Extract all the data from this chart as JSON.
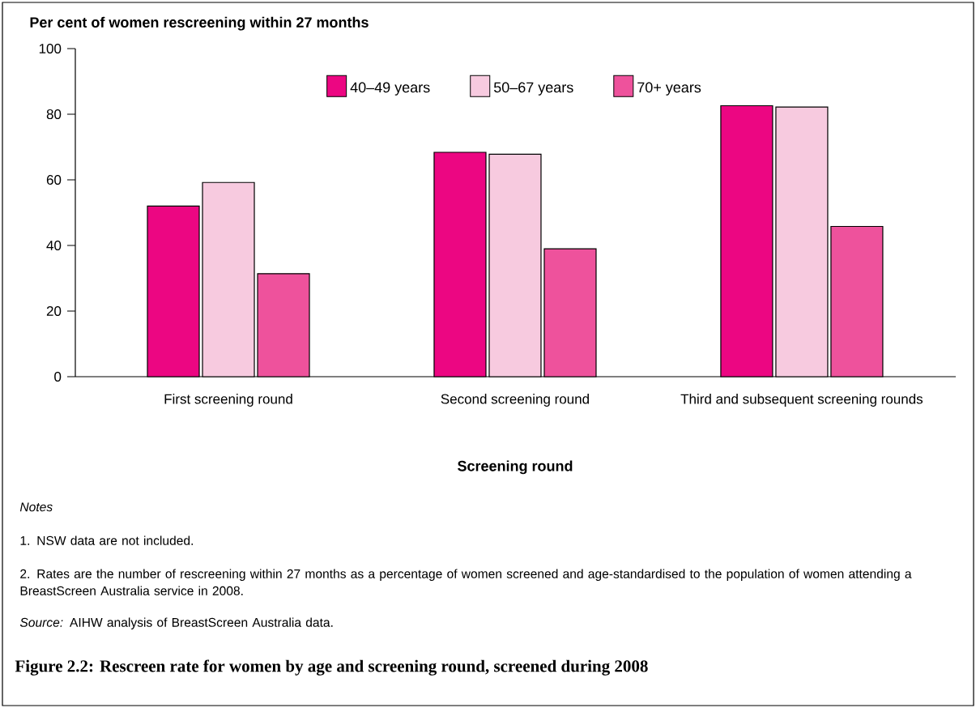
{
  "chart_data": {
    "type": "bar",
    "title": "Figure 2.2: Rescreen rate for women by age and screening round, screened during 2008",
    "ylabel": "Per cent of women rescreening within 27 months",
    "xlabel": "Screening round",
    "categories": [
      "First screening round",
      "Second screening round",
      "Third and subsequent screening rounds"
    ],
    "series": [
      {
        "name": "40–49 years",
        "color": "#ec0682",
        "values": [
          52.0,
          68.4,
          82.6
        ]
      },
      {
        "name": "50–67 years",
        "color": "#f7cadf",
        "values": [
          59.2,
          67.8,
          82.2
        ]
      },
      {
        "name": "70+ years",
        "color": "#ee529c",
        "values": [
          31.4,
          39.0,
          45.8
        ]
      }
    ],
    "ylim": [
      0,
      100
    ],
    "yticks": [
      0,
      20,
      40,
      60,
      80,
      100
    ],
    "legend": "top",
    "grid": false,
    "annotations": [
      "Notes",
      "1. NSW data are not included.",
      "2. Rates are the number of rescreening within 27 months as a percentage of women screened and age-standardised to the population of women attending a BreastScreen Australia service in 2008.",
      "*Source:* AIHW analysis of BreastScreen Australia data."
    ]
  }
}
